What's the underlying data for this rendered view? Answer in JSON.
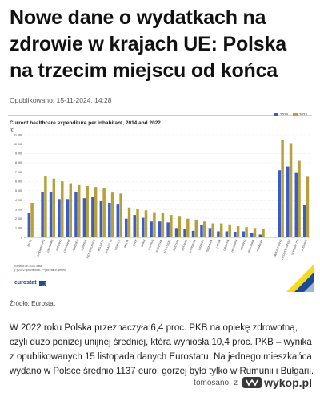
{
  "article": {
    "title": "Nowe dane o wydatkach na zdrowie w krajach UE: Polska na trzecim miejscu od końca",
    "published": "Opublikowano: 15-11-2024, 14:28",
    "source": "Źródło: Eurostat",
    "body": "W 2022 roku Polska przeznaczyła 6,4 proc. PKB na opiekę zdrowotną, czyli dużo poniżej unijnej średniej, która wyniosła 10,4 proc. PKB – wynika z opublikowanych 15 listopada danych Eurostatu. Na jednego mieszkańca wydano w Polsce średnio 1137 euro, gorzej było tylko w Rumunii i Bułgarii."
  },
  "figure": {
    "note_line1": "Ranked on 2022 data.",
    "note_line2": "(*) 2022: provisional. (**) Break in series.",
    "logo_text": "eurostat"
  },
  "chart_data": {
    "type": "bar",
    "title": "Current healthcare expenditure per inhabitant, 2014 and 2022",
    "unit": "(€)",
    "ylim": [
      0,
      11000
    ],
    "yticks": [
      0,
      1000,
      2000,
      3000,
      4000,
      5000,
      6000,
      7000,
      8000,
      9000,
      10000,
      11000
    ],
    "ytick_labels": [
      "0",
      "1 000",
      "2 000",
      "3 000",
      "4 000",
      "5 000",
      "6 000",
      "7 000",
      "8 000",
      "9 000",
      "10 000",
      "11 000"
    ],
    "grid": true,
    "legend_position": "top-right",
    "categories": [
      "EU (*)",
      "Luxembourg",
      "Denmark",
      "Ireland",
      "Germany",
      "Sweden",
      "Austria",
      "Netherlands",
      "Belgium",
      "Finland (*)",
      "France",
      "Malta",
      "Italy",
      "Spain",
      "Cyprus",
      "Slovenia",
      "Portugal",
      "Czechia",
      "Estonia",
      "Lithuania",
      "Greece",
      "Slovakia",
      "Latvia",
      "Croatia",
      "Hungary",
      "Poland",
      "Bulgaria",
      "Romania",
      "Switzerland",
      "Liechtenstein",
      "Norway (**)",
      "Iceland"
    ],
    "gap_after_index": 27,
    "gap_before_index": 0,
    "series": [
      {
        "name": "2014",
        "color": "#3b5bc7",
        "values": [
          2600,
          4900,
          4900,
          4100,
          4100,
          4900,
          4200,
          4300,
          3900,
          3700,
          3600,
          2000,
          2400,
          2100,
          1700,
          1700,
          1600,
          1000,
          900,
          700,
          1300,
          1000,
          650,
          650,
          600,
          650,
          450,
          300,
          7200,
          7600,
          6900,
          3500
        ]
      },
      {
        "name": "2022",
        "color": "#b5a03a",
        "values": [
          3700,
          6600,
          6300,
          6000,
          5800,
          5600,
          5500,
          5400,
          5300,
          4800,
          4700,
          3200,
          3000,
          2900,
          2700,
          2600,
          2400,
          2300,
          2000,
          1900,
          1700,
          1500,
          1500,
          1400,
          1200,
          1100,
          1000,
          900,
          10400,
          10100,
          8200,
          6500
        ]
      }
    ]
  },
  "watermark": {
    "user": "tomosano",
    "separator": "z",
    "brand": "wykop.pl"
  }
}
